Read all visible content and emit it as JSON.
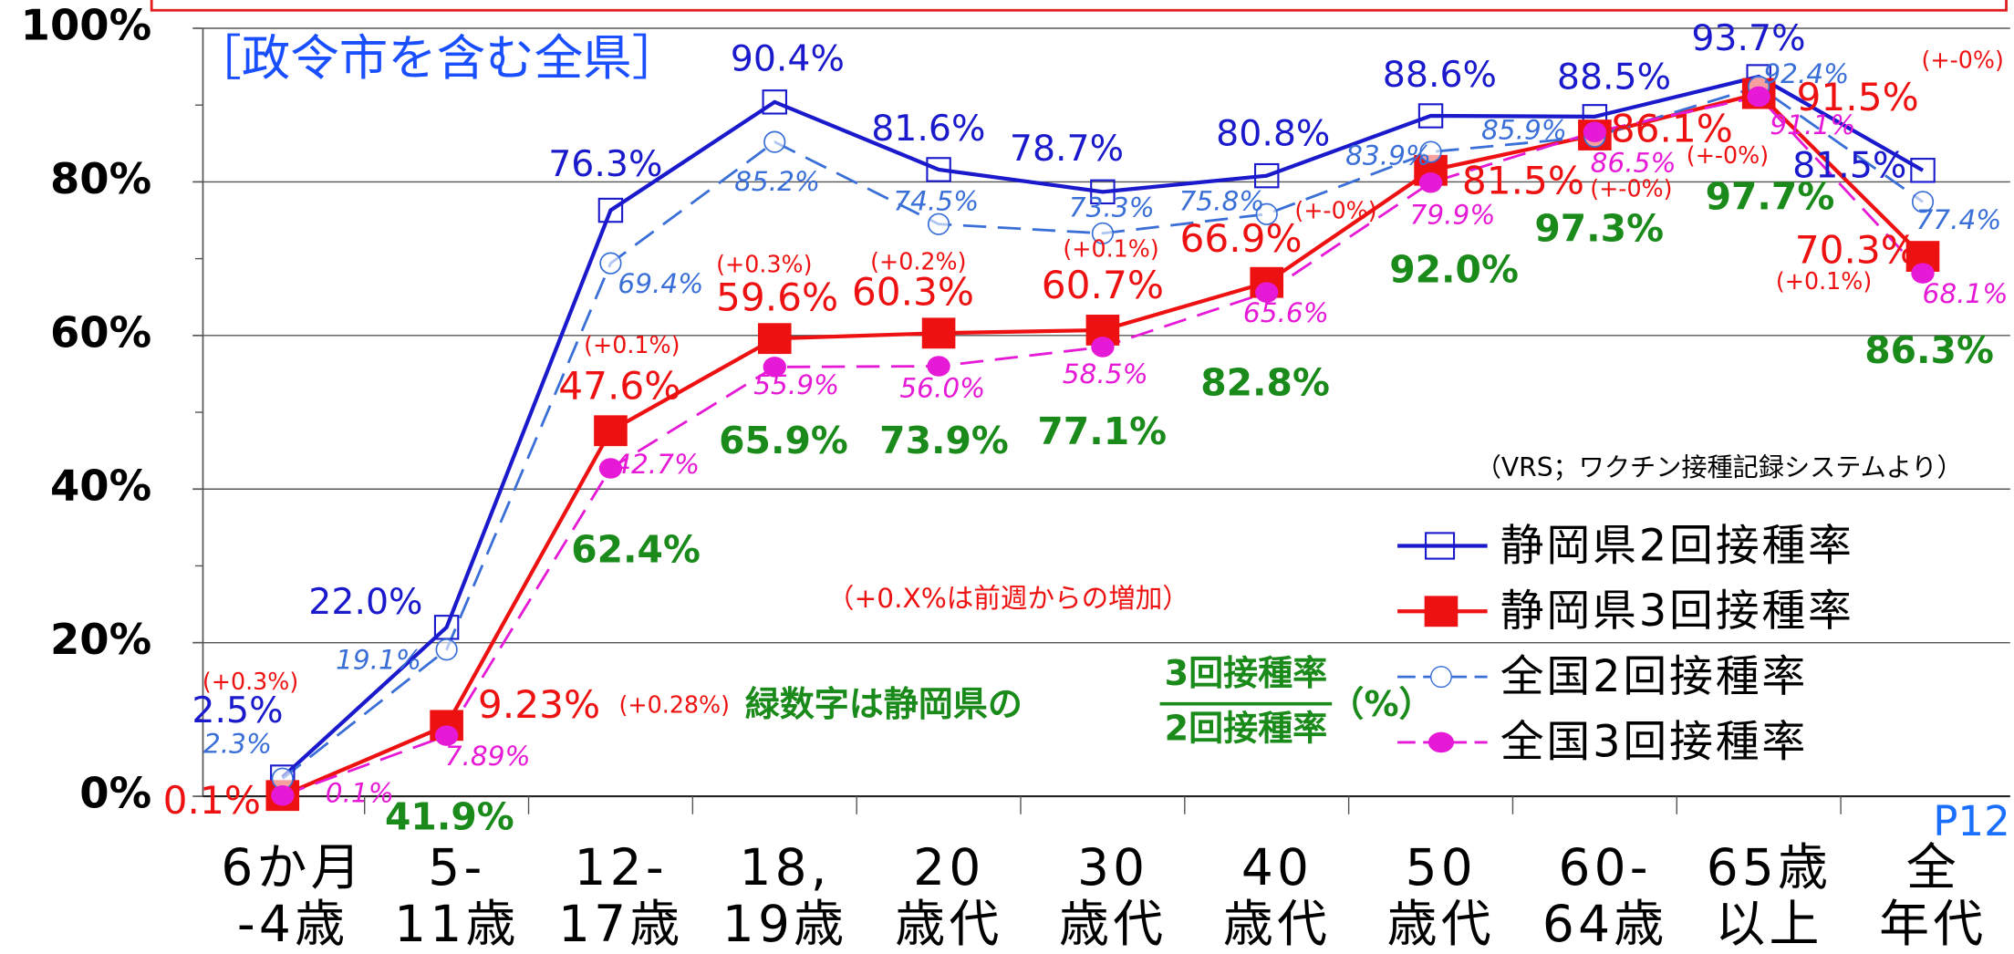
{
  "chart_data": {
    "type": "line",
    "subtitle": "［政令市を含む全県］",
    "source_note": "（VRS；ワクチン接種記録システムより）",
    "increment_note": "（+0.X%は前週からの増加）",
    "ratio_note": {
      "text": "緑数字は静岡県の",
      "numerator": "3回接種率",
      "denominator": "2回接種率",
      "unit": "（%）"
    },
    "page_label": "P12",
    "categories": [
      [
        "6か月",
        "-4歳"
      ],
      [
        "5-",
        "11歳"
      ],
      [
        "12-",
        "17歳"
      ],
      [
        "18,",
        "19歳"
      ],
      [
        "20",
        "歳代"
      ],
      [
        "30",
        "歳代"
      ],
      [
        "40",
        "歳代"
      ],
      [
        "50",
        "歳代"
      ],
      [
        "60-",
        "64歳"
      ],
      [
        "65歳",
        "以上"
      ],
      [
        "全",
        "年代"
      ]
    ],
    "series": [
      {
        "name": "静岡県2回接種率",
        "color": "#1a1acc",
        "values": [
          2.5,
          22.0,
          76.3,
          90.4,
          81.6,
          78.7,
          80.8,
          88.6,
          88.5,
          93.7,
          81.5
        ],
        "value_labels": [
          "2.5%",
          "22.0%",
          "76.3%",
          "90.4%",
          "81.6%",
          "78.7%",
          "80.8%",
          "88.6%",
          "88.5%",
          "93.7%",
          "81.5%"
        ]
      },
      {
        "name": "静岡県3回接種率",
        "color": "#ee1111",
        "values": [
          0.1,
          9.23,
          47.6,
          59.6,
          60.3,
          60.7,
          66.9,
          81.5,
          86.1,
          91.5,
          70.3
        ],
        "value_labels": [
          "0.1%",
          "9.23%",
          "47.6%",
          "59.6%",
          "60.3%",
          "60.7%",
          "66.9%",
          "81.5%",
          "86.1%",
          "91.5%",
          "70.3%"
        ]
      },
      {
        "name": "全国2回接種率",
        "color": "#3a6fd8",
        "values": [
          2.3,
          19.1,
          69.4,
          85.2,
          74.5,
          73.3,
          75.8,
          83.9,
          85.9,
          92.4,
          77.4
        ],
        "value_labels": [
          "2.3%",
          "19.1%",
          "69.4%",
          "85.2%",
          "74.5%",
          "73.3%",
          "75.8%",
          "83.9%",
          "85.9%",
          "92.4%",
          "77.4%"
        ]
      },
      {
        "name": "全国3回接種率",
        "color": "#e619d6",
        "values": [
          0.1,
          7.89,
          42.7,
          55.9,
          56.0,
          58.5,
          65.6,
          79.9,
          86.5,
          91.1,
          68.1
        ],
        "value_labels": [
          "0.1%",
          "7.89%",
          "42.7%",
          "55.9%",
          "56.0%",
          "58.5%",
          "65.6%",
          "79.9%",
          "86.5%",
          "91.1%",
          "68.1%"
        ]
      }
    ],
    "ratio": {
      "color": "#1a8a1a",
      "values": [
        null,
        41.9,
        62.4,
        65.9,
        73.9,
        77.1,
        82.8,
        92.0,
        97.3,
        97.7,
        86.3
      ],
      "value_labels": [
        null,
        "41.9%",
        "62.4%",
        "65.9%",
        "73.9%",
        "77.1%",
        "82.8%",
        "92.0%",
        "97.3%",
        "97.7%",
        "86.3%"
      ]
    },
    "increments": [
      "(+0.3%)",
      "(+0.28%)",
      "(+0.1%)",
      "(+0.3%)",
      "(+0.2%)",
      "(+0.1%)",
      "(+-0%)",
      "(+-0%)",
      "(+-0%)",
      "(+-0%)",
      "(+0.1%)"
    ],
    "ylim": [
      0,
      100
    ],
    "yticks": [
      {
        "value": 0,
        "label": "0%"
      },
      {
        "value": 20,
        "label": "20%"
      },
      {
        "value": 40,
        "label": "40%"
      },
      {
        "value": 60,
        "label": "60%"
      },
      {
        "value": 80,
        "label": "80%"
      },
      {
        "value": 100,
        "label": "100%"
      }
    ],
    "minor_yticks": [
      10,
      30,
      50,
      70,
      90
    ],
    "grid": true,
    "legend": "right"
  }
}
